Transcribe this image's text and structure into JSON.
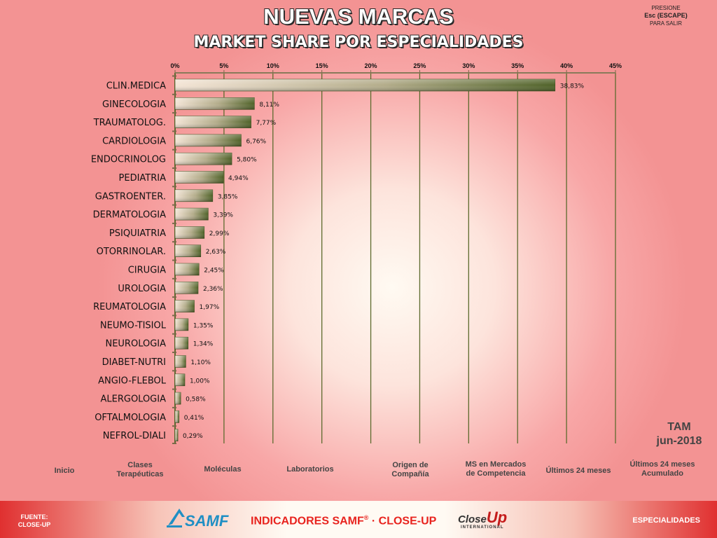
{
  "header": {
    "title": "NUEVAS MARCAS",
    "subtitle": "MARKET SHARE POR  ESPECIALIDADES",
    "esc_line1": "PRESIONE",
    "esc_line2": "Esc (ESCAPE)",
    "esc_line3": "PARA SALIR"
  },
  "chart_data": {
    "type": "bar",
    "orientation": "horizontal",
    "categories": [
      "CLIN.MEDICA",
      "GINECOLOGIA",
      "TRAUMATOLOG.",
      "CARDIOLOGIA",
      "ENDOCRINOLOG",
      "PEDIATRIA",
      "GASTROENTER.",
      "DERMATOLOGIA",
      "PSIQUIATRIA",
      "OTORRINOLAR.",
      "CIRUGIA",
      "UROLOGIA",
      "REUMATOLOGIA",
      "NEUMO-TISIOL",
      "NEUROLOGIA",
      "DIABET-NUTRI",
      "ANGIO-FLEBOL",
      "ALERGOLOGIA",
      "OFTALMOLOGIA",
      "NEFROL-DIALI"
    ],
    "values": [
      38.83,
      8.11,
      7.77,
      6.76,
      5.8,
      4.94,
      3.85,
      3.39,
      2.99,
      2.63,
      2.45,
      2.36,
      1.97,
      1.35,
      1.34,
      1.1,
      1.0,
      0.58,
      0.41,
      0.29
    ],
    "value_labels": [
      "38,83%",
      "8,11%",
      "7,77%",
      "6,76%",
      "5,80%",
      "4,94%",
      "3,85%",
      "3,39%",
      "2,99%",
      "2,63%",
      "2,45%",
      "2,36%",
      "1,97%",
      "1,35%",
      "1,34%",
      "1,10%",
      "1,00%",
      "0,58%",
      "0,41%",
      "0,29%"
    ],
    "xlim": [
      0,
      45
    ],
    "xticks": [
      0,
      5,
      10,
      15,
      20,
      25,
      30,
      35,
      40,
      45
    ],
    "xtick_labels": [
      "0%",
      "5%",
      "10%",
      "15%",
      "20%",
      "25%",
      "30%",
      "35%",
      "40%",
      "45%"
    ],
    "x_axis_position": "top",
    "grid": true,
    "bar_color": "#4f6228",
    "grid_color": "#5d6b2e"
  },
  "tam": {
    "label": "TAM",
    "period": "jun-2018"
  },
  "nav": {
    "items": [
      "Inicio",
      "Clases\nTerapéuticas",
      "Moléculas",
      "Laboratorios",
      "Origen de\nCompañía",
      "MS en Mercados\nde Competencia",
      "Últimos 24 meses",
      "Últimos 24 meses\nAcumulado"
    ]
  },
  "footer": {
    "source_line1": "FUENTE:",
    "source_line2": "CLOSE-UP",
    "samf_logo_text": "SAMF",
    "indicators_text": "INDICADORES SAMF",
    "registered": "®",
    "indicators_suffix": " · CLOSE-UP",
    "closeup_logo_a": "Close",
    "closeup_logo_b": "Up",
    "closeup_logo_c": "INTERNATIONAL",
    "section_button": "ESPECIALIDADES"
  },
  "colors": {
    "background": "#f39393",
    "title_text": "#ffffff",
    "footer_accent": "#e8231e"
  }
}
